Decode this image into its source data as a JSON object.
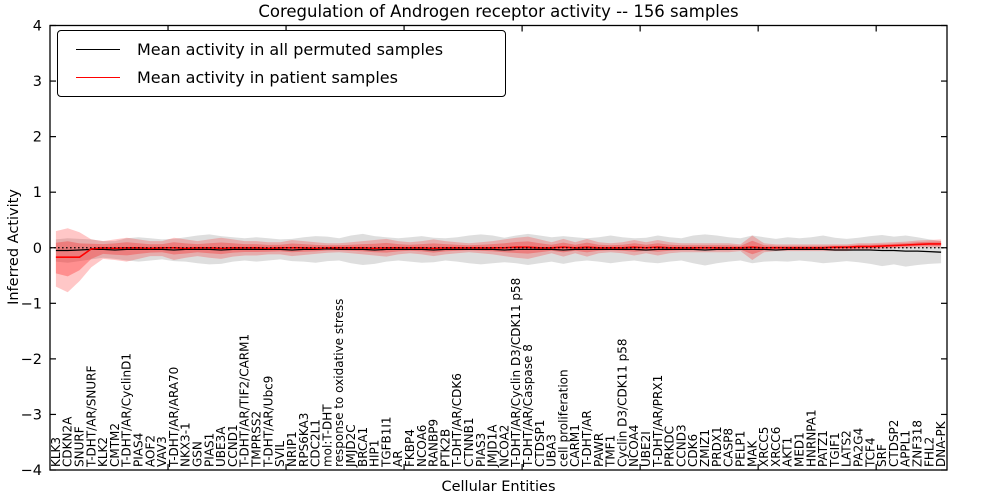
{
  "chart_data": {
    "type": "line",
    "title": "Coregulation of Androgen receptor activity -- 156 samples",
    "xlabel": "Cellular Entities",
    "ylabel": "Inferred Activity",
    "ylim": [
      -4,
      4
    ],
    "yticks": [
      -4,
      -3,
      -2,
      -1,
      0,
      1,
      2,
      3,
      4
    ],
    "x_major_tick_step": 10,
    "grid": false,
    "zero_line_style": "black dotted",
    "legend_position": "upper left",
    "colors": {
      "permuted_line": "#000000",
      "patient_line": "#ff0000",
      "permuted_band": "rgba(0,0,0,0.13)",
      "patient_band": "rgba(255,0,0,0.25)"
    },
    "categories": [
      "KLK3",
      "CDKN2A",
      "SNURF",
      "T-DHT/AR/SNURF",
      "KLK2",
      "CMTM2",
      "T-DHT/AR/CyclinD1",
      "PIAS4",
      "AOF2",
      "VAV3",
      "T-DHT/AR/ARA70",
      "NKX3-1",
      "GSN",
      "PIAS1",
      "UBE3A",
      "CCND1",
      "T-DHT/AR/TIF2/CARM1",
      "TMPRSS2",
      "T-DHT/AR/Ubc9",
      "SVIL",
      "NRIP1",
      "RPS6KA3",
      "CDC2L1",
      "mol:T-DHT",
      "response to oxidative stress",
      "JMJD2C",
      "BRCA1",
      "HIP1",
      "TGFB1I1",
      "AR",
      "FKBP4",
      "NCOA6",
      "RANBP9",
      "PTK2B",
      "T-DHT/AR/CDK6",
      "CTNNB1",
      "PIAS3",
      "JMJD1A",
      "NCOA2",
      "T-DHT/AR/Cyclin D3/CDK11 p58",
      "T-DHT/AR/Caspase 8",
      "CTDSP1",
      "UBA3",
      "cell proliferation",
      "CARM1",
      "T-DHT/AR",
      "PAWR",
      "TMF1",
      "Cyclin D3/CDK11 p58",
      "NCOA4",
      "UBE2I",
      "T-DHT/AR/PRX1",
      "PRKDC",
      "CCND3",
      "CDK6",
      "ZMIZ1",
      "PRDX1",
      "CASP8",
      "PELP1",
      "MAK",
      "XRCC5",
      "XRCC6",
      "AKT1",
      "MED1",
      "HNRNPA1",
      "PATZ1",
      "TGIF1",
      "LATS2",
      "PA2G4",
      "TCF4",
      "SRF",
      "CTDSP2",
      "APPL1",
      "ZNF318",
      "FHL2",
      "DNA-PK"
    ],
    "series": [
      {
        "name": "Mean activity in all permuted samples",
        "color": "#000000",
        "values": [
          -0.05,
          -0.05,
          -0.04,
          -0.03,
          -0.03,
          -0.04,
          -0.03,
          -0.03,
          -0.03,
          -0.03,
          -0.04,
          -0.03,
          -0.03,
          -0.03,
          -0.04,
          -0.03,
          -0.03,
          -0.03,
          -0.03,
          -0.03,
          -0.04,
          -0.03,
          -0.03,
          -0.02,
          -0.03,
          -0.03,
          -0.03,
          -0.04,
          -0.03,
          -0.03,
          -0.03,
          -0.03,
          -0.04,
          -0.03,
          -0.03,
          -0.03,
          -0.03,
          -0.03,
          -0.04,
          -0.03,
          -0.03,
          -0.03,
          -0.03,
          -0.04,
          -0.03,
          -0.03,
          -0.03,
          -0.03,
          -0.03,
          -0.03,
          -0.04,
          -0.03,
          -0.03,
          -0.03,
          -0.03,
          -0.04,
          -0.03,
          -0.03,
          -0.03,
          -0.03,
          -0.03,
          -0.04,
          -0.03,
          -0.03,
          -0.03,
          -0.03,
          -0.04,
          -0.04,
          -0.04,
          -0.04,
          -0.05,
          -0.05,
          -0.06,
          -0.06,
          -0.07,
          -0.08
        ],
        "std": [
          0.2,
          0.22,
          0.2,
          0.18,
          0.15,
          0.16,
          0.2,
          0.22,
          0.2,
          0.18,
          0.2,
          0.22,
          0.25,
          0.27,
          0.25,
          0.22,
          0.2,
          0.22,
          0.2,
          0.18,
          0.2,
          0.22,
          0.24,
          0.22,
          0.2,
          0.25,
          0.28,
          0.25,
          0.22,
          0.2,
          0.22,
          0.24,
          0.22,
          0.2,
          0.22,
          0.25,
          0.27,
          0.25,
          0.22,
          0.25,
          0.28,
          0.25,
          0.22,
          0.25,
          0.22,
          0.2,
          0.22,
          0.25,
          0.22,
          0.2,
          0.22,
          0.25,
          0.22,
          0.2,
          0.25,
          0.28,
          0.25,
          0.22,
          0.2,
          0.25,
          0.22,
          0.2,
          0.22,
          0.2,
          0.22,
          0.25,
          0.22,
          0.2,
          0.22,
          0.25,
          0.28,
          0.25,
          0.28,
          0.25,
          0.22,
          0.2
        ]
      },
      {
        "name": "Mean activity in patient samples",
        "color": "#ff0000",
        "values": [
          -0.17,
          -0.17,
          -0.17,
          -0.02,
          0.0,
          -0.01,
          0.0,
          0.0,
          -0.01,
          0.0,
          0.0,
          -0.01,
          0.0,
          0.0,
          -0.01,
          0.0,
          0.0,
          0.0,
          -0.01,
          0.0,
          0.0,
          0.0,
          -0.01,
          0.0,
          0.0,
          0.0,
          0.0,
          -0.01,
          0.0,
          0.0,
          0.0,
          0.0,
          -0.01,
          0.0,
          0.0,
          0.0,
          0.0,
          0.0,
          0.0,
          0.01,
          0.01,
          0.0,
          0.0,
          0.01,
          0.0,
          0.01,
          0.0,
          0.0,
          0.0,
          0.01,
          0.0,
          0.01,
          0.0,
          0.0,
          0.0,
          0.0,
          0.0,
          0.0,
          0.0,
          0.01,
          0.0,
          0.0,
          0.0,
          0.0,
          0.0,
          0.0,
          0.01,
          0.01,
          0.02,
          0.02,
          0.03,
          0.04,
          0.05,
          0.06,
          0.07,
          0.07
        ],
        "band_upper": [
          0.3,
          0.35,
          0.28,
          0.15,
          0.12,
          0.15,
          0.18,
          0.15,
          0.12,
          0.12,
          0.18,
          0.15,
          0.12,
          0.15,
          0.18,
          0.15,
          0.12,
          0.12,
          0.1,
          0.1,
          0.14,
          0.12,
          0.1,
          0.08,
          0.08,
          0.1,
          0.12,
          0.14,
          0.16,
          0.12,
          0.1,
          0.12,
          0.15,
          0.12,
          0.1,
          0.08,
          0.1,
          0.12,
          0.15,
          0.18,
          0.2,
          0.15,
          0.1,
          0.16,
          0.1,
          0.16,
          0.1,
          0.08,
          0.1,
          0.14,
          0.1,
          0.14,
          0.1,
          0.08,
          0.08,
          0.08,
          0.08,
          0.08,
          0.06,
          0.22,
          0.08,
          0.06,
          0.06,
          0.06,
          0.06,
          0.06,
          0.06,
          0.06,
          0.08,
          0.08,
          0.09,
          0.1,
          0.11,
          0.13,
          0.14,
          0.15
        ],
        "band_lower": [
          -0.7,
          -0.8,
          -0.6,
          -0.35,
          -0.2,
          -0.22,
          -0.25,
          -0.2,
          -0.15,
          -0.15,
          -0.22,
          -0.18,
          -0.15,
          -0.18,
          -0.2,
          -0.16,
          -0.14,
          -0.14,
          -0.12,
          -0.12,
          -0.15,
          -0.13,
          -0.11,
          -0.09,
          -0.08,
          -0.1,
          -0.12,
          -0.14,
          -0.16,
          -0.12,
          -0.1,
          -0.12,
          -0.15,
          -0.12,
          -0.1,
          -0.08,
          -0.1,
          -0.12,
          -0.15,
          -0.18,
          -0.2,
          -0.15,
          -0.1,
          -0.16,
          -0.1,
          -0.16,
          -0.1,
          -0.08,
          -0.1,
          -0.14,
          -0.1,
          -0.14,
          -0.1,
          -0.08,
          -0.08,
          -0.08,
          -0.08,
          -0.08,
          -0.06,
          -0.22,
          -0.08,
          -0.06,
          -0.06,
          -0.06,
          -0.06,
          -0.06,
          -0.06,
          -0.06,
          -0.04,
          -0.03,
          -0.02,
          -0.01,
          0.0,
          0.01,
          0.01,
          0.0
        ]
      }
    ]
  }
}
